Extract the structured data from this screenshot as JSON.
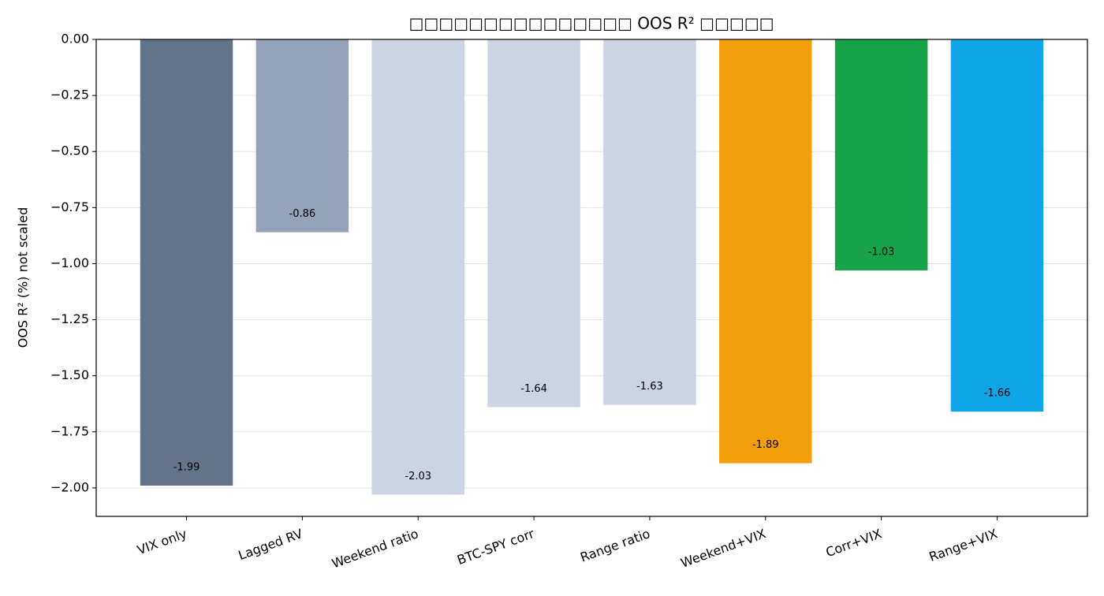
{
  "chart_data": {
    "type": "bar",
    "title": "□□□□□□□□□□□□□□□ OOS R² □□□□□",
    "ylabel": "OOS R² (%) not scaled",
    "categories": [
      "VIX only",
      "Lagged RV",
      "Weekend ratio",
      "BTC-SPY corr",
      "Range ratio",
      "Weekend+VIX",
      "Corr+VIX",
      "Range+VIX"
    ],
    "values": [
      -1.99,
      -0.86,
      -2.03,
      -1.64,
      -1.63,
      -1.89,
      -1.03,
      -1.66
    ],
    "colors": [
      "#64748b",
      "#94a3b8",
      "#cbd5e1",
      "#cbd5e1",
      "#cbd5e1",
      "#f59e0b",
      "#16a34a",
      "#0ea5e9"
    ],
    "ylim": [
      -2.127,
      0
    ],
    "yticks": [
      {
        "value": 0,
        "label": "0.00"
      },
      {
        "value": -0.25,
        "label": "−0.25"
      },
      {
        "value": -0.5,
        "label": "−0.50"
      },
      {
        "value": -0.75,
        "label": "−0.75"
      },
      {
        "value": -1,
        "label": "−1.00"
      },
      {
        "value": -1.25,
        "label": "−1.25"
      },
      {
        "value": -1.5,
        "label": "−1.50"
      },
      {
        "value": -1.75,
        "label": "−1.75"
      },
      {
        "value": -2,
        "label": "−2.00"
      }
    ],
    "grid": true
  }
}
